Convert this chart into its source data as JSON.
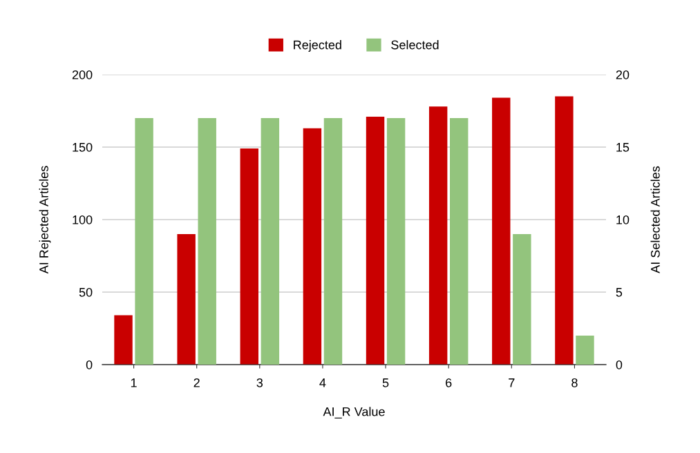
{
  "chart_data": {
    "type": "bar",
    "xlabel": "AI_R Value",
    "ylabel": "AI Rejected Articles",
    "y2label": "AI Selected Articles",
    "categories": [
      "1",
      "2",
      "3",
      "4",
      "5",
      "6",
      "7",
      "8"
    ],
    "series": [
      {
        "name": "Rejected",
        "color": "#c90000",
        "values": [
          34,
          90,
          149,
          163,
          171,
          178,
          184,
          185
        ]
      },
      {
        "name": "Selected",
        "color": "#93c47d",
        "axis": "y2",
        "values": [
          17,
          17,
          17,
          17,
          17,
          17,
          9,
          2
        ]
      }
    ],
    "ylim": [
      0,
      200
    ],
    "yticks": [
      0,
      50,
      100,
      150,
      200
    ],
    "y2lim": [
      0,
      20
    ],
    "y2ticks": [
      0,
      5,
      10,
      15,
      20
    ],
    "grid": "y",
    "legend": "top"
  }
}
